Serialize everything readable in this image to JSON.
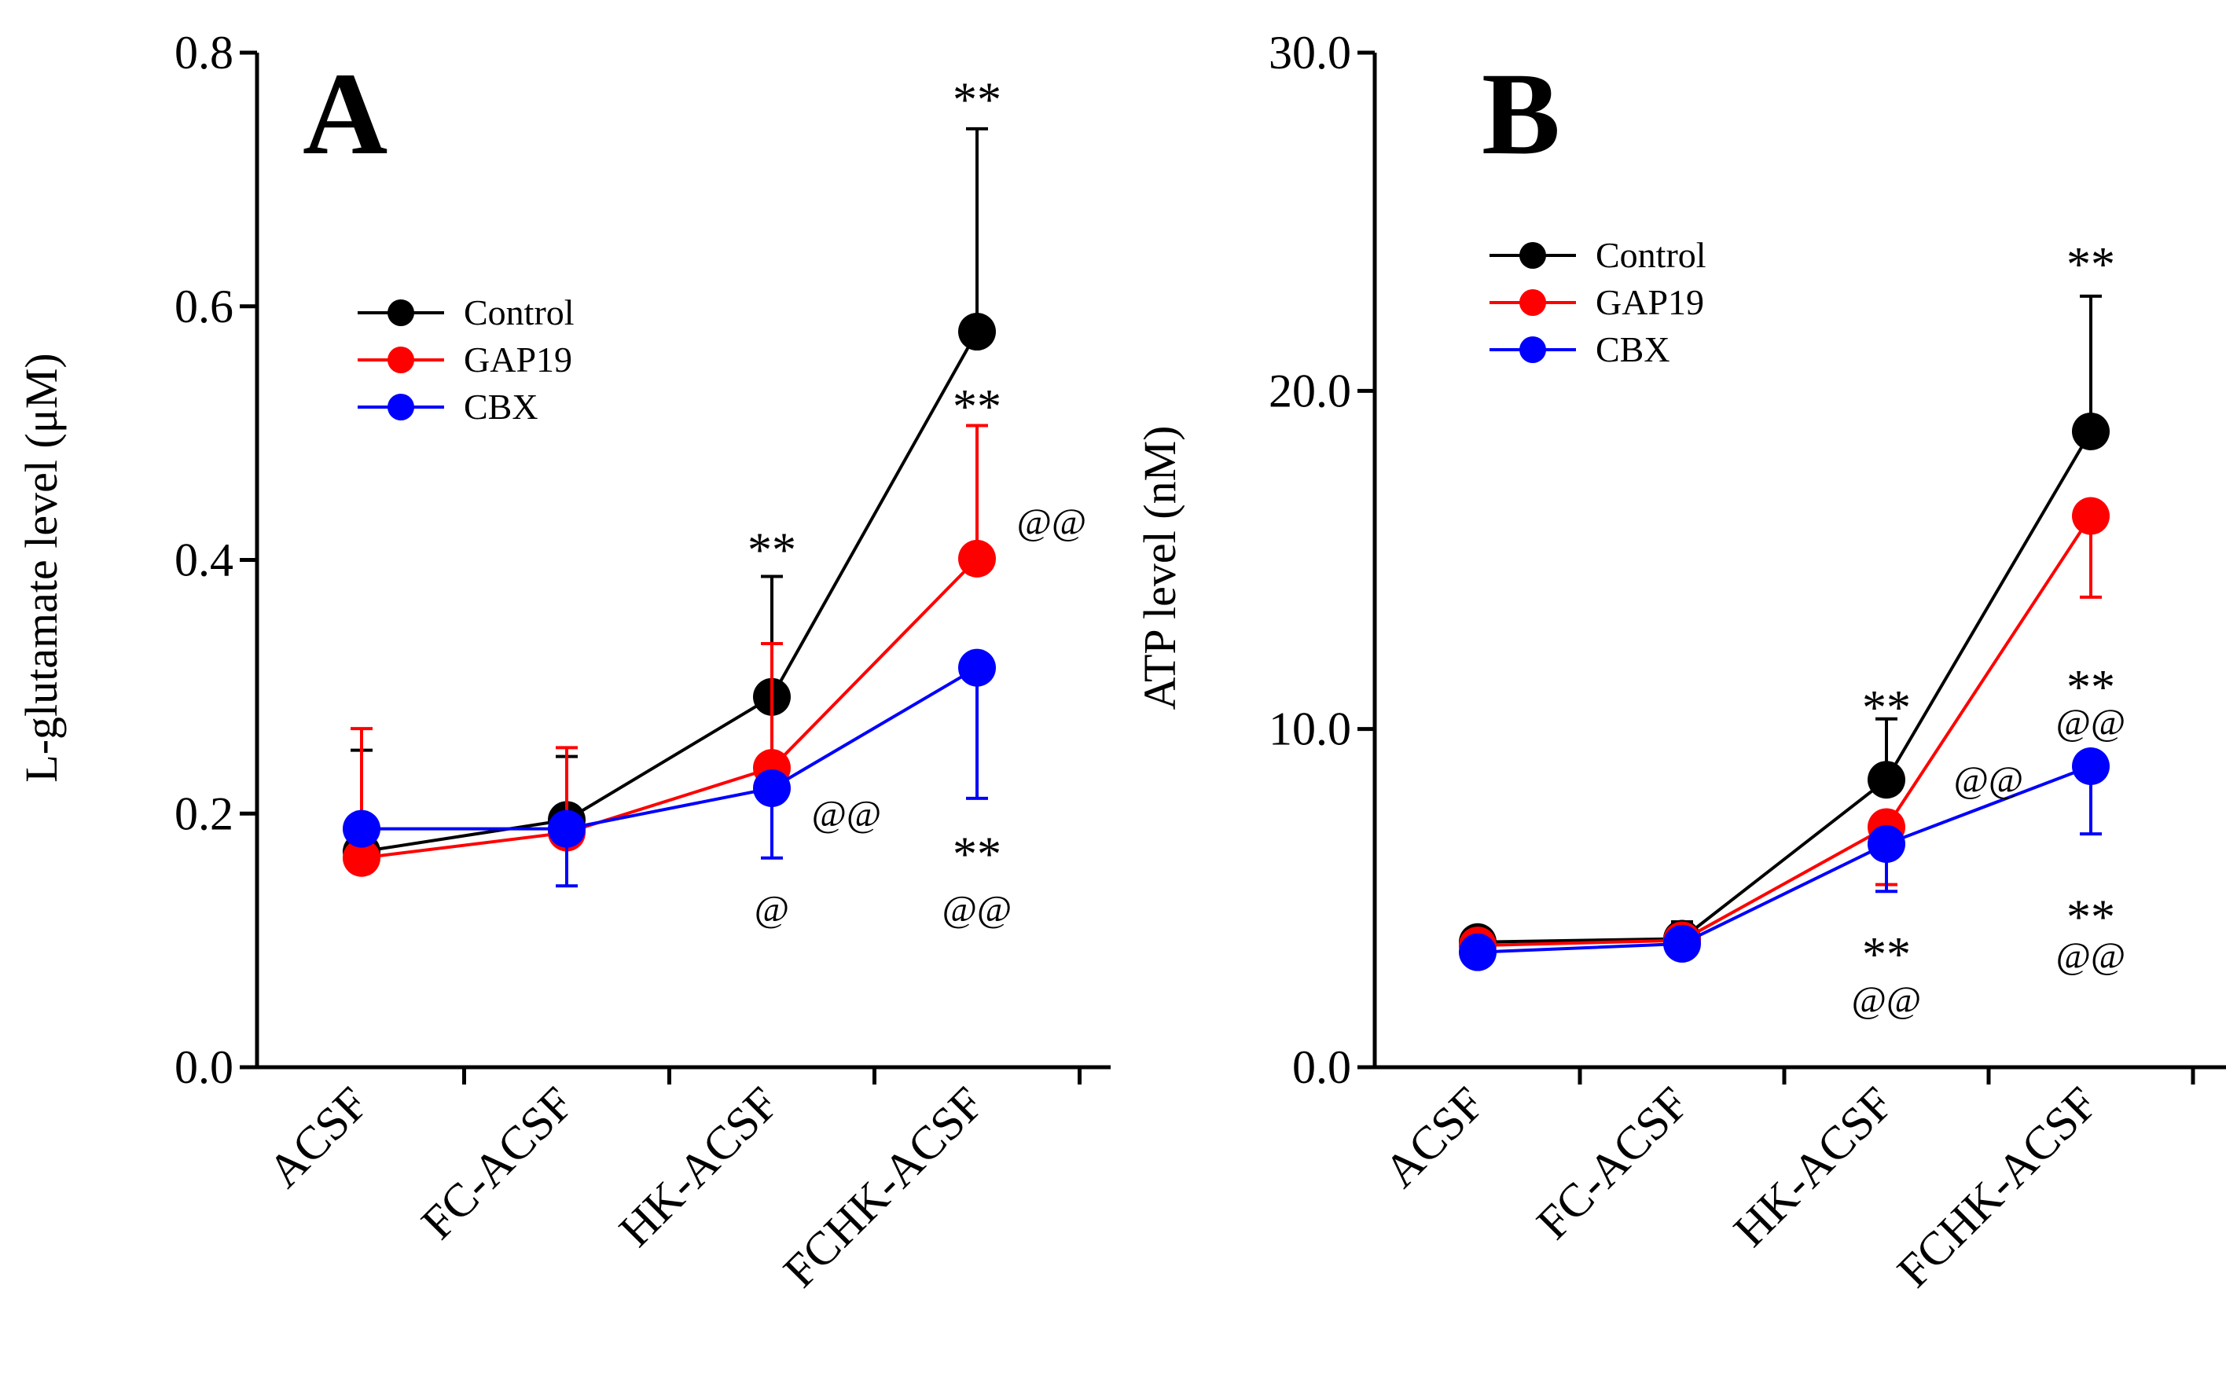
{
  "chart_data": [
    {
      "type": "line",
      "panel_label": "A",
      "categories": [
        "ACSF",
        "FC-ACSF",
        "HK-ACSF",
        "FCHK-ACSF"
      ],
      "ylabel": "L-glutamate level (μM)",
      "xlabel": "",
      "ylim": [
        0,
        0.8
      ],
      "yticks": [
        0,
        0.2,
        0.4,
        0.6,
        0.8
      ],
      "ytick_labels": [
        "0.0",
        "0.2",
        "0.4",
        "0.6",
        "0.8"
      ],
      "legend": {
        "placement": "top-left",
        "entries": [
          "Control",
          "GAP19",
          "CBX"
        ]
      },
      "series": [
        {
          "name": "Control",
          "color": "#000000",
          "values": [
            0.17,
            0.195,
            0.292,
            0.58
          ],
          "errors": [
            0.08,
            0.05,
            0.095,
            0.16
          ],
          "error_dir": "up"
        },
        {
          "name": "GAP19",
          "color": "#ff0000",
          "values": [
            0.165,
            0.185,
            0.236,
            0.401
          ],
          "errors": [
            0.102,
            0.067,
            0.098,
            0.105
          ],
          "error_dir": "up"
        },
        {
          "name": "CBX",
          "color": "#0000ff",
          "values": [
            0.188,
            0.188,
            0.22,
            0.315
          ],
          "errors": [
            0.0,
            0.045,
            0.055,
            0.103
          ],
          "error_dir": "down"
        }
      ],
      "annotations": [
        {
          "text": "**",
          "cat": 2,
          "y": 0.415,
          "dx": 0,
          "color": "#000000",
          "size": 62
        },
        {
          "text": "@@",
          "cat": 2,
          "y": 0.2,
          "dx": 95,
          "color": "#000000",
          "size": 48
        },
        {
          "text": "@",
          "cat": 2,
          "y": 0.125,
          "dx": 0,
          "color": "#000000",
          "size": 48
        },
        {
          "text": "**",
          "cat": 3,
          "y": 0.77,
          "dx": 0,
          "color": "#000000",
          "size": 62
        },
        {
          "text": "**",
          "cat": 3,
          "y": 0.528,
          "dx": 0,
          "color": "#000000",
          "size": 62
        },
        {
          "text": "@@",
          "cat": 3,
          "y": 0.43,
          "dx": 95,
          "color": "#000000",
          "size": 48
        },
        {
          "text": "**",
          "cat": 3,
          "y": 0.175,
          "dx": 0,
          "color": "#000000",
          "size": 62
        },
        {
          "text": "@@",
          "cat": 3,
          "y": 0.125,
          "dx": 0,
          "color": "#000000",
          "size": 48
        }
      ]
    },
    {
      "type": "line",
      "panel_label": "B",
      "categories": [
        "ACSF",
        "FC-ACSF",
        "HK-ACSF",
        "FCHK-ACSF"
      ],
      "ylabel": "ATP level (nM)",
      "xlabel": "",
      "ylim": [
        0,
        30
      ],
      "yticks": [
        0,
        10,
        20,
        30
      ],
      "ytick_labels": [
        "0.0",
        "10.0",
        "20.0",
        "30.0"
      ],
      "legend": {
        "placement": "top-left",
        "entries": [
          "Control",
          "GAP19",
          "CBX"
        ]
      },
      "series": [
        {
          "name": "Control",
          "color": "#000000",
          "values": [
            3.7,
            3.8,
            8.5,
            18.8
          ],
          "errors": [
            0.0,
            0.5,
            1.8,
            4.0
          ],
          "error_dir": "up"
        },
        {
          "name": "GAP19",
          "color": "#ff0000",
          "values": [
            3.6,
            3.75,
            7.1,
            16.3
          ],
          "errors": [
            0.0,
            0.0,
            1.7,
            2.4
          ],
          "error_dir": "down"
        },
        {
          "name": "CBX",
          "color": "#0000ff",
          "values": [
            3.4,
            3.65,
            6.6,
            8.9
          ],
          "errors": [
            0.0,
            0.0,
            1.4,
            2.0
          ],
          "error_dir": "down"
        }
      ],
      "annotations": [
        {
          "text": "**",
          "cat": 2,
          "y": 10.9,
          "dx": 0,
          "color": "#000000",
          "size": 62
        },
        {
          "text": "@@",
          "cat": 2,
          "y": 8.5,
          "dx": 130,
          "color": "#000000",
          "size": 48
        },
        {
          "text": "**",
          "cat": 2,
          "y": 3.6,
          "dx": 0,
          "color": "#000000",
          "size": 62
        },
        {
          "text": "@@",
          "cat": 2,
          "y": 2.0,
          "dx": 0,
          "color": "#000000",
          "size": 48
        },
        {
          "text": "**",
          "cat": 3,
          "y": 24.0,
          "dx": 0,
          "color": "#000000",
          "size": 62
        },
        {
          "text": "**",
          "cat": 3,
          "y": 11.5,
          "dx": 0,
          "color": "#000000",
          "size": 62
        },
        {
          "text": "@@",
          "cat": 3,
          "y": 10.2,
          "dx": 0,
          "color": "#000000",
          "size": 48
        },
        {
          "text": "**",
          "cat": 3,
          "y": 4.7,
          "dx": 0,
          "color": "#000000",
          "size": 62
        },
        {
          "text": "@@",
          "cat": 3,
          "y": 3.3,
          "dx": 0,
          "color": "#000000",
          "size": 48
        }
      ]
    }
  ]
}
